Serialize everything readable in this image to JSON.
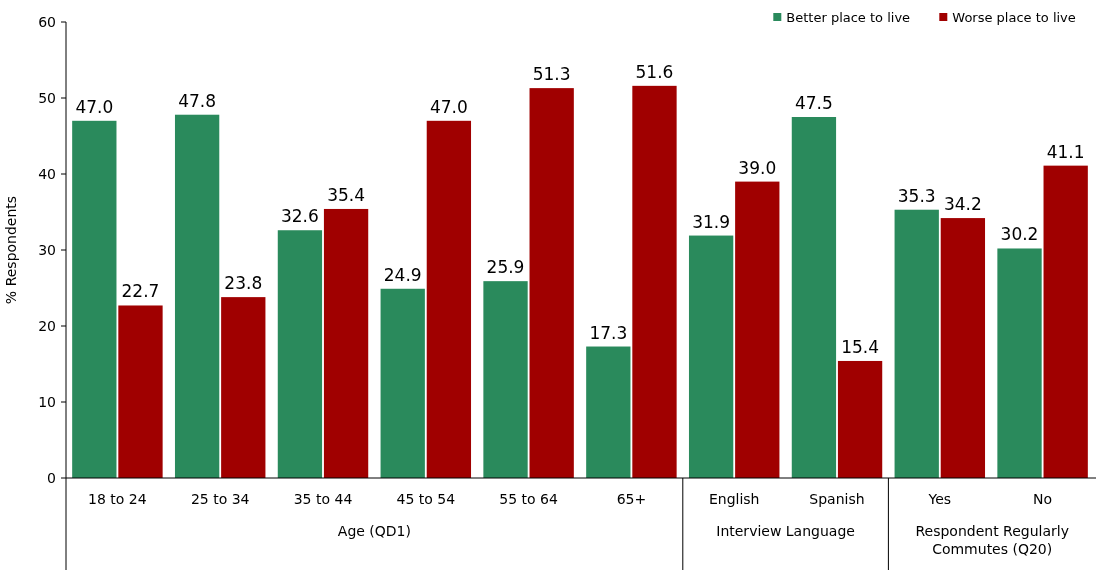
{
  "chart_data": {
    "type": "bar",
    "ylabel": "% Respondents",
    "categories": [
      "18 to 24",
      "25 to 34",
      "35 to 44",
      "45 to 54",
      "55 to 64",
      "65+",
      "English",
      "Spanish",
      "Yes",
      "No"
    ],
    "series": [
      {
        "name": "Better place to live",
        "color": "#2a8a5c",
        "values": [
          47.0,
          47.8,
          32.6,
          24.9,
          25.9,
          17.3,
          31.9,
          47.5,
          35.3,
          30.2
        ],
        "value_labels": [
          "47.0",
          "47.8",
          "32.6",
          "24.9",
          "25.9",
          "17.3",
          "31.9",
          "47.5",
          "35.3",
          "30.2"
        ]
      },
      {
        "name": "Worse place to live",
        "color": "#a00000",
        "values": [
          22.7,
          23.8,
          35.4,
          47.0,
          51.3,
          51.6,
          39.0,
          15.4,
          34.2,
          41.1
        ],
        "value_labels": [
          "22.7",
          "23.8",
          "35.4",
          "47.0",
          "51.3",
          "51.6",
          "39.0",
          "15.4",
          "34.2",
          "41.1"
        ]
      }
    ],
    "ylim": [
      0,
      60
    ],
    "yticks": [
      0,
      10,
      20,
      30,
      40,
      50,
      60
    ],
    "legend": "top right",
    "marker": "square",
    "annotations": [
      "Age (QD1)",
      "Interview Language",
      "Respondent Regularly Commutes (Q20)"
    ]
  }
}
